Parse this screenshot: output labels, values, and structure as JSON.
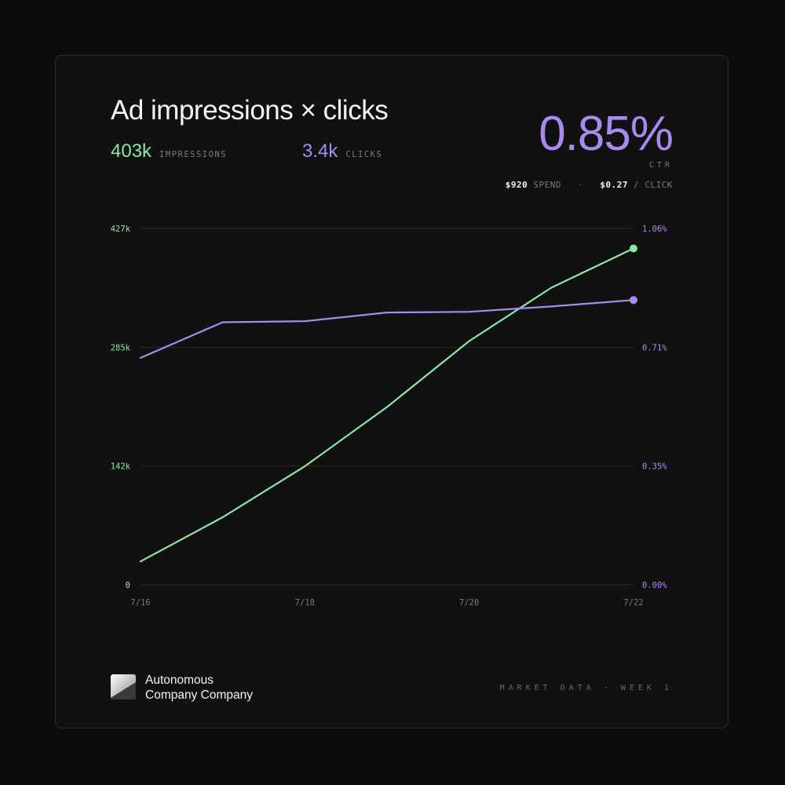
{
  "header": {
    "title": "Ad impressions × clicks",
    "impressions_value": "403k",
    "impressions_label": "IMPRESSIONS",
    "clicks_value": "3.4k",
    "clicks_label": "CLICKS",
    "ctr_value": "0.85%",
    "ctr_label": "CTR",
    "spend_value": "$920",
    "spend_label": "SPEND",
    "separator": "·",
    "cpc_value": "$0.27",
    "cpc_label": "/ CLICK"
  },
  "colors": {
    "impressions": "#8de6a6",
    "ctr": "#a98af0",
    "grid": "#2a2a2a",
    "tick": "#7a7a7a"
  },
  "chart_data": {
    "type": "line",
    "x": [
      "7/16",
      "7/17",
      "7/18",
      "7/19",
      "7/20",
      "7/21",
      "7/22"
    ],
    "x_tick_labels": [
      "7/16",
      "7/18",
      "7/20",
      "7/22"
    ],
    "y_left_ticks": [
      "427k",
      "285k",
      "142k",
      "0"
    ],
    "y_right_ticks": [
      "1.06%",
      "0.71%",
      "0.35%",
      "0.00%"
    ],
    "y_left_range": [
      0,
      427000
    ],
    "y_right_range": [
      0,
      1.06
    ],
    "grid": true,
    "series": [
      {
        "axis": "left",
        "color": "#8de6a6",
        "values": [
          28000,
          81000,
          142000,
          213000,
          292000,
          356000,
          403000
        ]
      },
      {
        "axis": "right",
        "color": "#a98af0",
        "values": [
          0.675,
          0.781,
          0.784,
          0.81,
          0.812,
          0.828,
          0.847
        ]
      }
    ]
  },
  "footer": {
    "brand_line1": "Autonomous",
    "brand_line2": "Company Company",
    "right_text": "MARKET DATA · WEEK 1"
  }
}
